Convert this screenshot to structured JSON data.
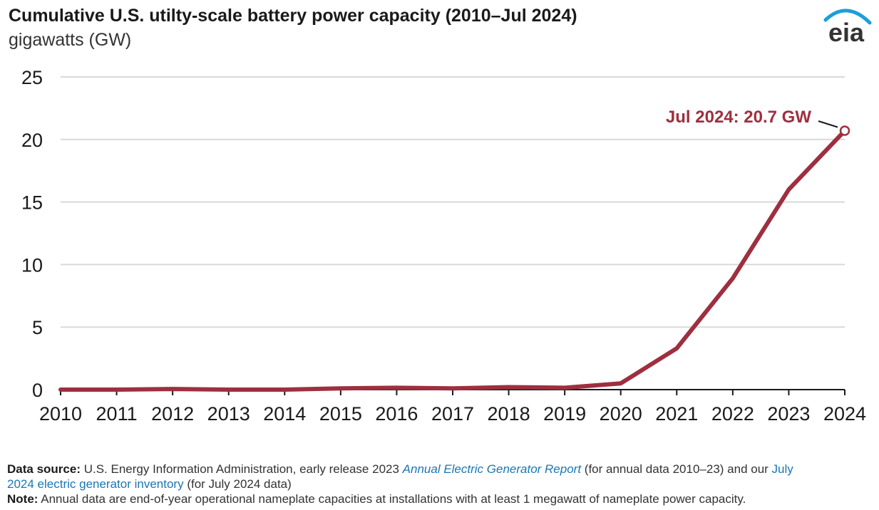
{
  "header": {
    "title": "Cumulative U.S. utilty-scale battery power capacity (2010–Jul 2024)",
    "subtitle": "gigawatts (GW)",
    "logo_text": "eia"
  },
  "colors": {
    "series": "#9e2f3f",
    "grid": "#d9d9d9",
    "axis": "#1a1a1a",
    "link": "#1a76b4",
    "logo_arc": "#1a9fd9"
  },
  "chart_data": {
    "type": "line",
    "title": "Cumulative U.S. utilty-scale battery power capacity (2010–Jul 2024)",
    "ylabel": "gigawatts (GW)",
    "xlabel": "",
    "x": [
      "2010",
      "2011",
      "2012",
      "2013",
      "2014",
      "2015",
      "2016",
      "2017",
      "2018",
      "2019",
      "2020",
      "2021",
      "2022",
      "2023",
      "2024"
    ],
    "series": [
      {
        "values": [
          0.0,
          0.0,
          0.05,
          0.0,
          0.0,
          0.1,
          0.15,
          0.1,
          0.2,
          0.15,
          0.5,
          3.3,
          8.9,
          16.0,
          20.7
        ]
      }
    ],
    "ylim": [
      0,
      25
    ],
    "yticks": [
      "0",
      "5",
      "10",
      "15",
      "20",
      "25"
    ],
    "grid": true,
    "annotations": [
      {
        "text": "Jul 2024: 20.7 GW",
        "x": "2024",
        "y": 20.7
      }
    ]
  },
  "footer": {
    "source_label": "Data source:",
    "source_text_1": " U.S. Energy Information Administration, early release 2023 ",
    "source_link_1": "Annual Electric Generator Report",
    "source_text_2": " (for annual data 2010–23) and our ",
    "source_link_2a": "July",
    "source_link_2b": "2024 electric generator inventory",
    "source_text_3": " (for July 2024 data)",
    "note_label": "Note:",
    "note_text": " Annual data are end-of-year operational nameplate capacities at installations with at least 1 megawatt of nameplate power capacity."
  }
}
